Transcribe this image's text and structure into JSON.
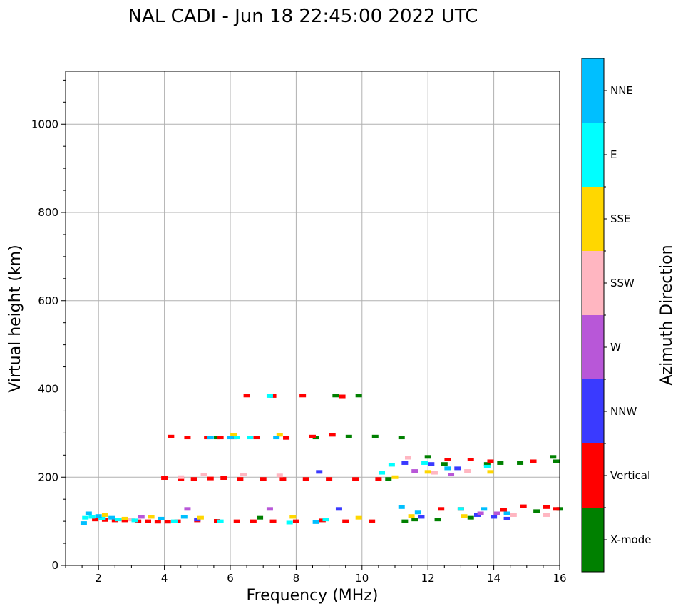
{
  "chart_data": {
    "type": "scatter",
    "title": "NAL CADI - Jun 18 22:45:00 2022 UTC",
    "xlabel": "Frequency (MHz)",
    "ylabel": "Virtual height (km)",
    "xlim": [
      1,
      16
    ],
    "ylim": [
      0,
      1120
    ],
    "xticks": [
      2,
      4,
      6,
      8,
      10,
      12,
      14,
      16
    ],
    "yticks": [
      0,
      200,
      400,
      600,
      800,
      1000
    ],
    "grid": true,
    "colorbar": {
      "title": "Azimuth Direction",
      "categories": [
        {
          "name": "X-mode",
          "color": "#008000"
        },
        {
          "name": "Vertical",
          "color": "#ff0000"
        },
        {
          "name": "NNW",
          "color": "#3a3aff"
        },
        {
          "name": "W",
          "color": "#b857d8"
        },
        {
          "name": "SSW",
          "color": "#ffb6c1"
        },
        {
          "name": "SSE",
          "color": "#ffd700"
        },
        {
          "name": "E",
          "color": "#00ffff"
        },
        {
          "name": "NNE",
          "color": "#00bfff"
        }
      ]
    },
    "series": [
      {
        "name": "X-mode",
        "points": [
          [
            5.6,
            290
          ],
          [
            6.9,
            108
          ],
          [
            8.6,
            290
          ],
          [
            9.2,
            385
          ],
          [
            9.6,
            292
          ],
          [
            9.9,
            385
          ],
          [
            10.4,
            292
          ],
          [
            10.8,
            196
          ],
          [
            11.2,
            290
          ],
          [
            11.3,
            100
          ],
          [
            11.6,
            104
          ],
          [
            12.0,
            246
          ],
          [
            12.3,
            104
          ],
          [
            12.5,
            230
          ],
          [
            13.3,
            108
          ],
          [
            13.8,
            230
          ],
          [
            14.2,
            232
          ],
          [
            14.8,
            232
          ],
          [
            15.3,
            123
          ],
          [
            15.8,
            246
          ],
          [
            15.9,
            236
          ],
          [
            16.0,
            128
          ]
        ]
      },
      {
        "name": "Vertical",
        "points": [
          [
            1.9,
            104
          ],
          [
            2.2,
            103
          ],
          [
            2.5,
            102
          ],
          [
            2.8,
            102
          ],
          [
            3.2,
            100
          ],
          [
            3.5,
            100
          ],
          [
            3.8,
            99
          ],
          [
            4.0,
            198
          ],
          [
            4.1,
            99
          ],
          [
            4.2,
            292
          ],
          [
            4.4,
            100
          ],
          [
            4.5,
            196
          ],
          [
            4.7,
            290
          ],
          [
            4.9,
            196
          ],
          [
            5.0,
            102
          ],
          [
            5.3,
            290
          ],
          [
            5.4,
            197
          ],
          [
            5.6,
            101
          ],
          [
            5.7,
            290
          ],
          [
            5.8,
            198
          ],
          [
            6.1,
            290
          ],
          [
            6.2,
            100
          ],
          [
            6.3,
            196
          ],
          [
            6.5,
            385
          ],
          [
            6.7,
            100
          ],
          [
            6.8,
            290
          ],
          [
            7.0,
            196
          ],
          [
            7.3,
            384
          ],
          [
            7.3,
            100
          ],
          [
            7.6,
            196
          ],
          [
            7.7,
            289
          ],
          [
            8.0,
            100
          ],
          [
            8.2,
            385
          ],
          [
            8.3,
            196
          ],
          [
            8.5,
            292
          ],
          [
            8.8,
            102
          ],
          [
            9.0,
            196
          ],
          [
            9.1,
            296
          ],
          [
            9.4,
            383
          ],
          [
            9.5,
            100
          ],
          [
            9.8,
            196
          ],
          [
            10.3,
            100
          ],
          [
            10.5,
            196
          ],
          [
            12.4,
            128
          ],
          [
            12.6,
            240
          ],
          [
            13.0,
            128
          ],
          [
            13.3,
            240
          ],
          [
            13.9,
            236
          ],
          [
            14.3,
            126
          ],
          [
            14.9,
            134
          ],
          [
            15.2,
            236
          ],
          [
            15.6,
            132
          ],
          [
            15.9,
            128
          ]
        ]
      },
      {
        "name": "NNW",
        "points": [
          [
            5.0,
            104
          ],
          [
            8.7,
            212
          ],
          [
            9.3,
            128
          ],
          [
            11.3,
            232
          ],
          [
            11.8,
            110
          ],
          [
            12.1,
            230
          ],
          [
            12.9,
            220
          ],
          [
            13.5,
            114
          ],
          [
            14.0,
            110
          ],
          [
            14.4,
            106
          ]
        ]
      },
      {
        "name": "W",
        "points": [
          [
            3.3,
            110
          ],
          [
            4.7,
            128
          ],
          [
            7.2,
            128
          ],
          [
            11.6,
            214
          ],
          [
            12.7,
            206
          ],
          [
            13.6,
            118
          ],
          [
            14.1,
            118
          ]
        ]
      },
      {
        "name": "SSW",
        "points": [
          [
            3.0,
            104
          ],
          [
            4.5,
            200
          ],
          [
            5.2,
            206
          ],
          [
            6.4,
            206
          ],
          [
            7.5,
            204
          ],
          [
            11.4,
            244
          ],
          [
            12.2,
            210
          ],
          [
            13.2,
            214
          ],
          [
            14.6,
            114
          ],
          [
            15.6,
            114
          ]
        ]
      },
      {
        "name": "SSE",
        "points": [
          [
            2.2,
            114
          ],
          [
            2.8,
            106
          ],
          [
            3.6,
            110
          ],
          [
            5.1,
            108
          ],
          [
            6.1,
            296
          ],
          [
            7.5,
            296
          ],
          [
            7.9,
            110
          ],
          [
            9.9,
            108
          ],
          [
            11.0,
            200
          ],
          [
            11.5,
            112
          ],
          [
            12.0,
            212
          ],
          [
            13.1,
            112
          ],
          [
            13.9,
            212
          ]
        ]
      },
      {
        "name": "E",
        "points": [
          [
            1.6,
            108
          ],
          [
            1.8,
            110
          ],
          [
            2.1,
            106
          ],
          [
            2.6,
            104
          ],
          [
            3.1,
            102
          ],
          [
            4.3,
            100
          ],
          [
            5.7,
            100
          ],
          [
            6.2,
            290
          ],
          [
            6.6,
            290
          ],
          [
            7.2,
            384
          ],
          [
            7.8,
            97
          ],
          [
            8.9,
            104
          ],
          [
            10.6,
            210
          ],
          [
            10.9,
            228
          ],
          [
            11.9,
            232
          ],
          [
            12.6,
            220
          ],
          [
            13.0,
            128
          ],
          [
            13.8,
            224
          ]
        ]
      },
      {
        "name": "NNE",
        "points": [
          [
            1.55,
            96
          ],
          [
            1.7,
            118
          ],
          [
            2.0,
            112
          ],
          [
            2.4,
            108
          ],
          [
            3.9,
            106
          ],
          [
            4.6,
            110
          ],
          [
            5.4,
            290
          ],
          [
            6.0,
            290
          ],
          [
            7.4,
            290
          ],
          [
            8.6,
            98
          ],
          [
            11.2,
            132
          ],
          [
            11.7,
            120
          ],
          [
            12.6,
            220
          ],
          [
            13.7,
            128
          ],
          [
            14.4,
            118
          ]
        ]
      }
    ]
  }
}
